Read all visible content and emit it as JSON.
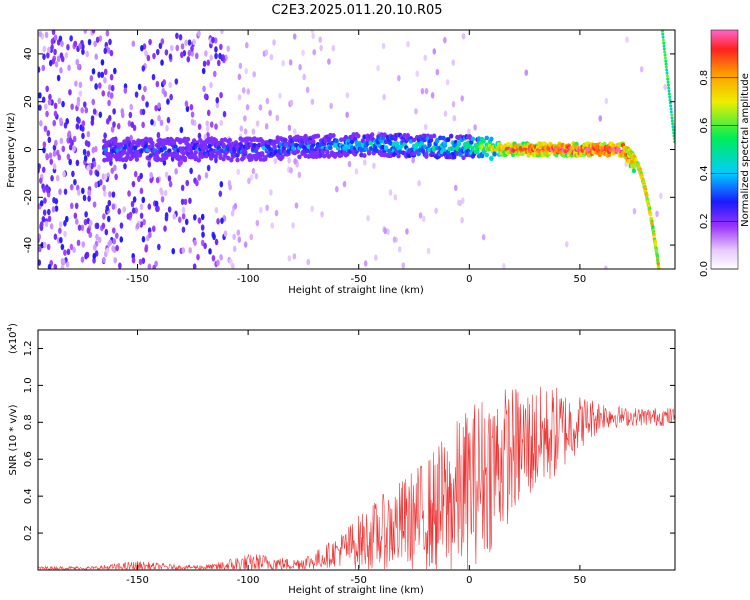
{
  "title": "C2E3.2025.011.20.10.R05",
  "colors": {
    "snr_line": "#ee3333",
    "frame": "#000000"
  },
  "colorbar": {
    "label": "Normalized spectral amplitude",
    "ticks": [
      "0.0",
      "0.2",
      "0.4",
      "0.6",
      "0.8"
    ],
    "tick_values": [
      0.0,
      0.2,
      0.4,
      0.6,
      0.8
    ],
    "range": [
      0,
      1
    ],
    "colormap": "rainbow (white→purple→blue→cyan→green→yellow→orange→red)"
  },
  "chart_data": [
    {
      "type": "heatmap",
      "title": "",
      "xlabel": "Height of straight line (km)",
      "ylabel": "Frequency (Hz)",
      "xlim": [
        -195,
        93
      ],
      "ylim": [
        -50,
        50
      ],
      "x_ticks": [
        "-150",
        "-100",
        "-50",
        "0",
        "50"
      ],
      "x_tick_values": [
        -150,
        -100,
        -50,
        0,
        50
      ],
      "y_ticks": [
        "-40",
        "-20",
        "0",
        "20",
        "40"
      ],
      "y_tick_values": [
        -40,
        -20,
        0,
        20,
        40
      ],
      "description_points": [
        {
          "x": -195,
          "f0": 0,
          "amp": 0.15
        },
        {
          "x": -160,
          "f0": 0,
          "amp": 0.3
        },
        {
          "x": -100,
          "f0": 0,
          "amp": 0.3
        },
        {
          "x": -50,
          "f0": 2,
          "amp": 0.4
        },
        {
          "x": 0,
          "f0": 1,
          "amp": 0.5
        },
        {
          "x": 20,
          "f0": 0,
          "amp": 0.9
        },
        {
          "x": 70,
          "f0": 0,
          "amp": 1.0
        },
        {
          "x": 80,
          "f0": -15,
          "amp": 0.6
        },
        {
          "x": 85,
          "f0": -50,
          "amp": 0.4
        }
      ],
      "grid": false
    },
    {
      "type": "line",
      "title": "",
      "xlabel": "Height of straight line (km)",
      "ylabel": "SNR (10 * v/v)",
      "scale_label": "(x10",
      "scale_exp": "4",
      "xlim": [
        -195,
        93
      ],
      "ylim": [
        0,
        1.3
      ],
      "x_ticks": [
        "-150",
        "-100",
        "-50",
        "0",
        "50"
      ],
      "x_tick_values": [
        -150,
        -100,
        -50,
        0,
        50
      ],
      "y_ticks": [
        "0.2",
        "0.4",
        "0.6",
        "0.8",
        "1.0",
        "1.2"
      ],
      "y_tick_values": [
        0.2,
        0.4,
        0.6,
        0.8,
        1.0,
        1.2
      ],
      "series": [
        {
          "x": [
            -195,
            -170,
            -150,
            -130,
            -115,
            -105,
            -95,
            -80,
            -70,
            -60,
            -50,
            -40,
            -30,
            -20,
            -10,
            0,
            10,
            20,
            30,
            40,
            50,
            60,
            70,
            80,
            93
          ],
          "y_mid": [
            0.01,
            0.01,
            0.02,
            0.015,
            0.015,
            0.03,
            0.04,
            0.03,
            0.05,
            0.1,
            0.15,
            0.2,
            0.25,
            0.3,
            0.35,
            0.45,
            0.55,
            0.65,
            0.7,
            0.75,
            0.8,
            0.84,
            0.83,
            0.83,
            0.83
          ],
          "y_amp": [
            0.01,
            0.01,
            0.03,
            0.01,
            0.02,
            0.05,
            0.05,
            0.03,
            0.05,
            0.08,
            0.15,
            0.2,
            0.25,
            0.3,
            0.4,
            0.45,
            0.45,
            0.35,
            0.3,
            0.25,
            0.15,
            0.08,
            0.05,
            0.05,
            0.05
          ]
        }
      ],
      "grid": false
    }
  ]
}
